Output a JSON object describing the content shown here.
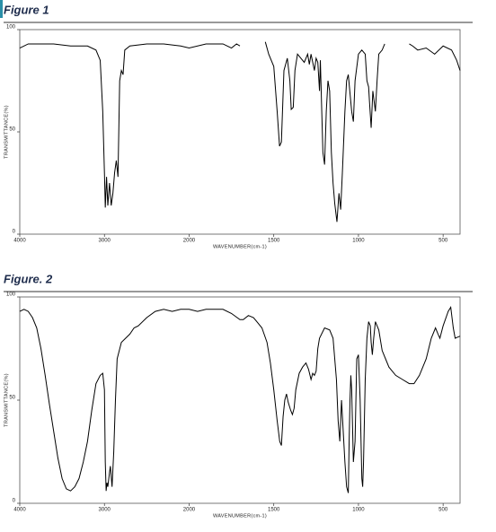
{
  "chart_data": [
    {
      "type": "line",
      "title": "Figure 1",
      "x_label": "WAVENUMBER(cm-1)",
      "y_label": "TRANSMITTANCE(%)",
      "xlim": [
        4000,
        400
      ],
      "scale_break": 2000,
      "xticks": [
        4000,
        3000,
        2000,
        1500,
        1000,
        500
      ],
      "ylim": [
        0,
        100
      ],
      "yticks": [
        0,
        50,
        100
      ],
      "grid": false,
      "color": "#000000",
      "x": [
        4000,
        3900,
        3800,
        3600,
        3400,
        3200,
        3100,
        3050,
        3020,
        3000,
        2990,
        2975,
        2960,
        2940,
        2920,
        2900,
        2880,
        2860,
        2840,
        2820,
        2800,
        2780,
        2760,
        2700,
        2500,
        2300,
        2100,
        2000,
        1900,
        1800,
        1750,
        1720,
        1700,
        1600,
        1550,
        1530,
        1500,
        1480,
        1466,
        1455,
        1440,
        1420,
        1405,
        1397,
        1385,
        1375,
        1360,
        1340,
        1320,
        1300,
        1290,
        1280,
        1260,
        1250,
        1240,
        1230,
        1225,
        1210,
        1200,
        1190,
        1180,
        1170,
        1160,
        1150,
        1140,
        1127,
        1115,
        1105,
        1095,
        1080,
        1070,
        1060,
        1040,
        1030,
        1020,
        1000,
        980,
        960,
        950,
        940,
        935,
        925,
        915,
        900,
        890,
        880,
        860,
        845,
        780,
        700,
        680,
        650,
        600,
        550,
        500,
        450,
        420,
        400
      ],
      "values": [
        91,
        93,
        93,
        93,
        92,
        92,
        90,
        85,
        60,
        30,
        13,
        28,
        14,
        25,
        14,
        20,
        30,
        36,
        28,
        75,
        80,
        78,
        90,
        92,
        93,
        93,
        92,
        91,
        93,
        93,
        91,
        93,
        92,
        null,
        94,
        88,
        82,
        60,
        43,
        45,
        80,
        86,
        75,
        61,
        62,
        80,
        88,
        86,
        84,
        88,
        83,
        88,
        80,
        86,
        84,
        70,
        85,
        40,
        34,
        60,
        75,
        70,
        40,
        25,
        15,
        6,
        20,
        12,
        30,
        60,
        75,
        78,
        60,
        55,
        75,
        88,
        90,
        88,
        75,
        72,
        65,
        52,
        70,
        60,
        75,
        88,
        90,
        93,
        null,
        93,
        92,
        90,
        91,
        88,
        92,
        90,
        85,
        80
      ]
    },
    {
      "type": "line",
      "title": "Figure. 2",
      "x_label": "WAVENUMBER(cm-1)",
      "y_label": "TRANSMITTANCE(%)",
      "xlim": [
        4000,
        400
      ],
      "scale_break": 2000,
      "xticks": [
        4000,
        3000,
        2000,
        1500,
        1000,
        500
      ],
      "ylim": [
        0,
        100
      ],
      "yticks": [
        0,
        50,
        100
      ],
      "grid": false,
      "color": "#000000",
      "x": [
        4000,
        3950,
        3900,
        3850,
        3800,
        3750,
        3700,
        3650,
        3600,
        3550,
        3500,
        3450,
        3400,
        3350,
        3300,
        3250,
        3200,
        3150,
        3100,
        3050,
        3020,
        3000,
        2990,
        2980,
        2970,
        2960,
        2940,
        2930,
        2910,
        2890,
        2870,
        2850,
        2800,
        2700,
        2650,
        2600,
        2500,
        2400,
        2300,
        2200,
        2100,
        2000,
        1950,
        1900,
        1800,
        1750,
        1700,
        1680,
        1650,
        1620,
        1600,
        1570,
        1540,
        1520,
        1500,
        1480,
        1465,
        1455,
        1445,
        1435,
        1425,
        1415,
        1400,
        1390,
        1380,
        1370,
        1350,
        1330,
        1310,
        1295,
        1280,
        1270,
        1260,
        1250,
        1240,
        1230,
        1200,
        1170,
        1150,
        1130,
        1120,
        1110,
        1100,
        1090,
        1080,
        1070,
        1060,
        1055,
        1050,
        1045,
        1040,
        1030,
        1020,
        1010,
        1000,
        990,
        980,
        975,
        970,
        960,
        950,
        940,
        930,
        925,
        918,
        910,
        900,
        880,
        860,
        840,
        820,
        780,
        740,
        700,
        672,
        640,
        600,
        570,
        545,
        530,
        519,
        500,
        470,
        455,
        440,
        429,
        400
      ],
      "values": [
        93,
        94,
        93,
        90,
        85,
        75,
        62,
        48,
        35,
        22,
        12,
        7,
        6,
        8,
        12,
        20,
        30,
        45,
        58,
        62,
        63,
        55,
        20,
        6,
        10,
        8,
        15,
        18,
        8,
        25,
        50,
        70,
        78,
        82,
        85,
        86,
        90,
        93,
        94,
        93,
        94,
        94,
        93,
        94,
        94,
        92,
        89,
        89,
        91,
        90,
        88,
        85,
        78,
        68,
        55,
        40,
        30,
        28,
        42,
        50,
        53,
        49,
        45,
        43,
        46,
        55,
        63,
        66,
        68,
        65,
        60,
        63,
        62,
        64,
        75,
        80,
        85,
        84,
        80,
        60,
        40,
        30,
        50,
        35,
        20,
        8,
        5,
        30,
        50,
        62,
        55,
        20,
        30,
        70,
        72,
        50,
        12,
        8,
        20,
        60,
        80,
        88,
        86,
        78,
        72,
        80,
        88,
        84,
        74,
        70,
        66,
        62,
        60,
        58,
        58,
        62,
        70,
        80,
        85,
        82,
        80,
        86,
        93,
        95,
        85,
        80,
        81
      ]
    }
  ]
}
